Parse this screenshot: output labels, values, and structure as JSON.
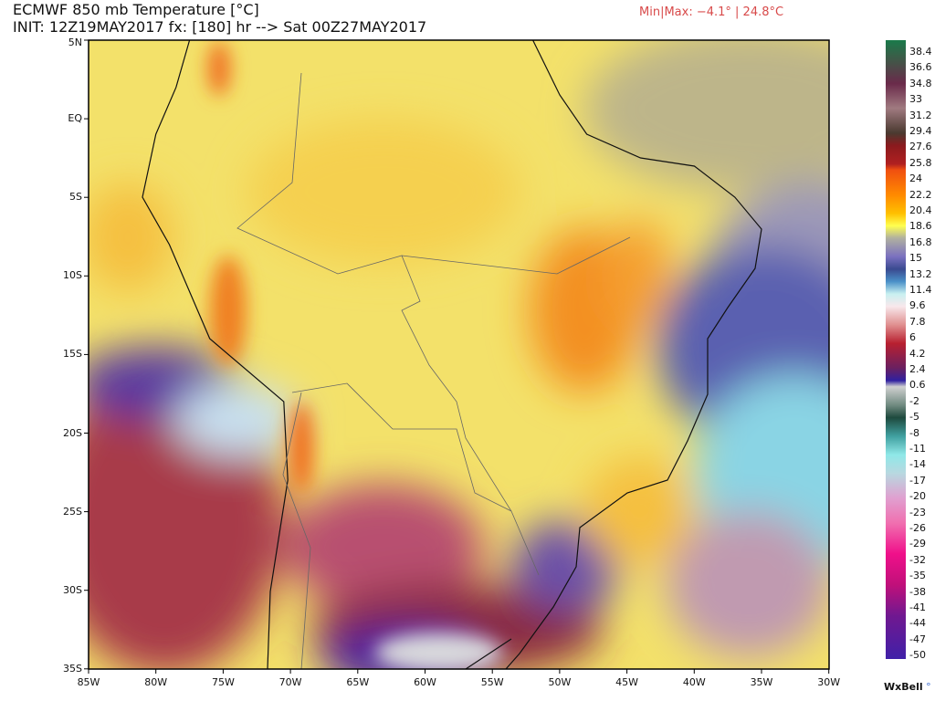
{
  "header": {
    "title": "ECMWF 850 mb Temperature [°C]",
    "subtitle": "INIT: 12Z19MAY2017 fx: [180] hr --> Sat 00Z27MAY2017",
    "minmax": "Min|Max: −4.1° | 24.8°C"
  },
  "map": {
    "lat_labels": [
      "5N",
      "EQ",
      "5S",
      "10S",
      "15S",
      "20S",
      "25S",
      "30S",
      "35S"
    ],
    "lon_labels": [
      "85W",
      "80W",
      "75W",
      "70W",
      "65W",
      "60W",
      "55W",
      "50W",
      "45W",
      "40W",
      "35W",
      "30W"
    ],
    "lat_range": [
      -35,
      5
    ],
    "lon_range": [
      -85,
      -30
    ],
    "colors": {
      "warm": "#f7a020",
      "mild": "#f5e060",
      "cold_pacific": "#a83a4a",
      "cold_core": "#4a22a0",
      "atlantic": "#90d8e8"
    }
  },
  "colorbar": {
    "labels": [
      "38.4",
      "36.6",
      "34.8",
      "33",
      "31.2",
      "29.4",
      "27.6",
      "25.8",
      "24",
      "22.2",
      "20.4",
      "18.6",
      "16.8",
      "15",
      "13.2",
      "11.4",
      "9.6",
      "7.8",
      "6",
      "4.2",
      "2.4",
      "0.6",
      "-2",
      "-5",
      "-8",
      "-11",
      "-14",
      "-17",
      "-20",
      "-23",
      "-26",
      "-29",
      "-32",
      "-35",
      "-38",
      "-41",
      "-44",
      "-47",
      "-50"
    ]
  },
  "brand": {
    "name": "WxBell",
    "mark": "°"
  }
}
